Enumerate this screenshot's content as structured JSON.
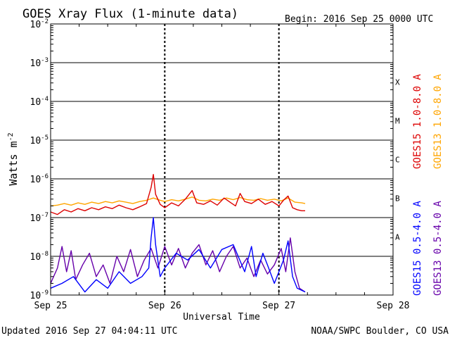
{
  "chart_data": {
    "type": "line",
    "title": "GOES Xray Flux (1-minute data)",
    "begin_label": "Begin:  2016 Sep 25 0000 UTC",
    "ylabel": "Watts m",
    "ylabel_sup": "-2",
    "xlabel": "Universal Time",
    "ylim": [
      1e-09,
      0.01
    ],
    "y_scale": "log",
    "y_ticks": [
      {
        "value": 1e-09,
        "mantissa": "10",
        "exp": "-9"
      },
      {
        "value": 1e-08,
        "mantissa": "10",
        "exp": "-8"
      },
      {
        "value": 1e-07,
        "mantissa": "10",
        "exp": "-7"
      },
      {
        "value": 1e-06,
        "mantissa": "10",
        "exp": "-6"
      },
      {
        "value": 1e-05,
        "mantissa": "10",
        "exp": "-5"
      },
      {
        "value": 0.0001,
        "mantissa": "10",
        "exp": "-4"
      },
      {
        "value": 0.001,
        "mantissa": "10",
        "exp": "-3"
      },
      {
        "value": 0.01,
        "mantissa": "10",
        "exp": "-2"
      }
    ],
    "x_ticks": [
      "Sep 25",
      "Sep 26",
      "Sep 27",
      "Sep 28"
    ],
    "x_range_days": [
      0,
      3
    ],
    "flare_classes": [
      {
        "label": "A",
        "value": 3.16e-08
      },
      {
        "label": "B",
        "value": 3.16e-07
      },
      {
        "label": "C",
        "value": 3.16e-06
      },
      {
        "label": "M",
        "value": 3.16e-05
      },
      {
        "label": "X",
        "value": 0.000316
      }
    ],
    "series": [
      {
        "name": "GOES15 1.0-8.0 A",
        "color": "#dd0000",
        "kind": "long",
        "points": [
          [
            0.0,
            1.4e-07
          ],
          [
            0.06,
            1.2e-07
          ],
          [
            0.12,
            1.6e-07
          ],
          [
            0.18,
            1.4e-07
          ],
          [
            0.24,
            1.7e-07
          ],
          [
            0.3,
            1.5e-07
          ],
          [
            0.36,
            1.8e-07
          ],
          [
            0.42,
            1.6e-07
          ],
          [
            0.48,
            1.9e-07
          ],
          [
            0.54,
            1.7e-07
          ],
          [
            0.6,
            2.1e-07
          ],
          [
            0.66,
            1.8e-07
          ],
          [
            0.72,
            1.6e-07
          ],
          [
            0.78,
            1.9e-07
          ],
          [
            0.84,
            2.3e-07
          ],
          [
            0.88,
            6e-07
          ],
          [
            0.9,
            1.3e-06
          ],
          [
            0.92,
            4e-07
          ],
          [
            0.96,
            2.2e-07
          ],
          [
            1.0,
            1.8e-07
          ],
          [
            1.06,
            2.4e-07
          ],
          [
            1.12,
            2e-07
          ],
          [
            1.18,
            3e-07
          ],
          [
            1.24,
            5e-07
          ],
          [
            1.28,
            2.4e-07
          ],
          [
            1.34,
            2.2e-07
          ],
          [
            1.4,
            2.7e-07
          ],
          [
            1.46,
            2.1e-07
          ],
          [
            1.52,
            3.2e-07
          ],
          [
            1.58,
            2.4e-07
          ],
          [
            1.62,
            2e-07
          ],
          [
            1.66,
            4.2e-07
          ],
          [
            1.7,
            2.6e-07
          ],
          [
            1.76,
            2.3e-07
          ],
          [
            1.82,
            3e-07
          ],
          [
            1.88,
            2.2e-07
          ],
          [
            1.94,
            2.6e-07
          ],
          [
            2.0,
            2e-07
          ],
          [
            2.04,
            2.8e-07
          ],
          [
            2.08,
            3.6e-07
          ],
          [
            2.12,
            1.8e-07
          ],
          [
            2.16,
            1.6e-07
          ],
          [
            2.2,
            1.5e-07
          ],
          [
            2.23,
            1.5e-07
          ]
        ]
      },
      {
        "name": "GOES13 1.0-8.0 A",
        "color": "#ffa500",
        "kind": "long",
        "points": [
          [
            0.0,
            2e-07
          ],
          [
            0.06,
            2.1e-07
          ],
          [
            0.12,
            2.3e-07
          ],
          [
            0.18,
            2.1e-07
          ],
          [
            0.24,
            2.4e-07
          ],
          [
            0.3,
            2.2e-07
          ],
          [
            0.36,
            2.5e-07
          ],
          [
            0.42,
            2.3e-07
          ],
          [
            0.48,
            2.6e-07
          ],
          [
            0.54,
            2.4e-07
          ],
          [
            0.6,
            2.7e-07
          ],
          [
            0.66,
            2.5e-07
          ],
          [
            0.72,
            2.3e-07
          ],
          [
            0.78,
            2.6e-07
          ],
          [
            0.84,
            2.8e-07
          ],
          [
            0.9,
            3.2e-07
          ],
          [
            0.96,
            2.8e-07
          ],
          [
            1.0,
            2.6e-07
          ],
          [
            1.06,
            2.9e-07
          ],
          [
            1.12,
            2.7e-07
          ],
          [
            1.18,
            3e-07
          ],
          [
            1.24,
            3.4e-07
          ],
          [
            1.3,
            2.8e-07
          ],
          [
            1.36,
            2.7e-07
          ],
          [
            1.42,
            3e-07
          ],
          [
            1.48,
            2.8e-07
          ],
          [
            1.54,
            3.2e-07
          ],
          [
            1.6,
            2.9e-07
          ],
          [
            1.66,
            3.3e-07
          ],
          [
            1.72,
            2.9e-07
          ],
          [
            1.78,
            2.8e-07
          ],
          [
            1.84,
            3.1e-07
          ],
          [
            1.9,
            2.8e-07
          ],
          [
            1.96,
            3e-07
          ],
          [
            2.02,
            2.7e-07
          ],
          [
            2.08,
            3.2e-07
          ],
          [
            2.14,
            2.5e-07
          ],
          [
            2.2,
            2.4e-07
          ],
          [
            2.23,
            2.3e-07
          ]
        ]
      },
      {
        "name": "GOES15 0.5-4.0 A",
        "color": "#0000ff",
        "kind": "short",
        "points": [
          [
            0.0,
            1.5e-09
          ],
          [
            0.1,
            2e-09
          ],
          [
            0.2,
            3e-09
          ],
          [
            0.3,
            1.2e-09
          ],
          [
            0.4,
            2.5e-09
          ],
          [
            0.5,
            1.5e-09
          ],
          [
            0.6,
            4e-09
          ],
          [
            0.7,
            2e-09
          ],
          [
            0.8,
            3e-09
          ],
          [
            0.86,
            5e-09
          ],
          [
            0.88,
            3e-08
          ],
          [
            0.9,
            1e-07
          ],
          [
            0.92,
            2e-08
          ],
          [
            0.96,
            3e-09
          ],
          [
            1.0,
            5e-09
          ],
          [
            1.1,
            1.2e-08
          ],
          [
            1.2,
            8e-09
          ],
          [
            1.3,
            1.5e-08
          ],
          [
            1.4,
            5e-09
          ],
          [
            1.5,
            1.5e-08
          ],
          [
            1.6,
            2e-08
          ],
          [
            1.7,
            4e-09
          ],
          [
            1.76,
            1.8e-08
          ],
          [
            1.8,
            3e-09
          ],
          [
            1.86,
            1.2e-08
          ],
          [
            1.9,
            6e-09
          ],
          [
            1.96,
            2e-09
          ],
          [
            2.0,
            4e-09
          ],
          [
            2.04,
            8e-09
          ],
          [
            2.08,
            2.5e-08
          ],
          [
            2.12,
            3e-09
          ],
          [
            2.16,
            1.5e-09
          ],
          [
            2.23,
            1.2e-09
          ]
        ]
      },
      {
        "name": "GOES13 0.5-4.0 A",
        "color": "#6600aa",
        "kind": "short",
        "points": [
          [
            0.0,
            2e-09
          ],
          [
            0.06,
            5e-09
          ],
          [
            0.1,
            1.8e-08
          ],
          [
            0.14,
            4e-09
          ],
          [
            0.18,
            1.4e-08
          ],
          [
            0.22,
            2.5e-09
          ],
          [
            0.28,
            6e-09
          ],
          [
            0.34,
            1.2e-08
          ],
          [
            0.4,
            3e-09
          ],
          [
            0.46,
            6e-09
          ],
          [
            0.52,
            2e-09
          ],
          [
            0.58,
            1e-08
          ],
          [
            0.64,
            4e-09
          ],
          [
            0.7,
            1.5e-08
          ],
          [
            0.76,
            3e-09
          ],
          [
            0.82,
            8e-09
          ],
          [
            0.88,
            1.6e-08
          ],
          [
            0.94,
            5e-09
          ],
          [
            1.0,
            1.8e-08
          ],
          [
            1.06,
            6e-09
          ],
          [
            1.12,
            1.6e-08
          ],
          [
            1.18,
            5e-09
          ],
          [
            1.24,
            1.2e-08
          ],
          [
            1.3,
            2e-08
          ],
          [
            1.36,
            6e-09
          ],
          [
            1.42,
            1.4e-08
          ],
          [
            1.48,
            4e-09
          ],
          [
            1.54,
            1e-08
          ],
          [
            1.6,
            1.8e-08
          ],
          [
            1.66,
            5e-09
          ],
          [
            1.72,
            9e-09
          ],
          [
            1.78,
            3e-09
          ],
          [
            1.84,
            8e-09
          ],
          [
            1.9,
            3.5e-09
          ],
          [
            1.96,
            6e-09
          ],
          [
            2.02,
            1.6e-08
          ],
          [
            2.06,
            4e-09
          ],
          [
            2.1,
            3e-08
          ],
          [
            2.14,
            4e-09
          ],
          [
            2.18,
            1.5e-09
          ],
          [
            2.23,
            1.2e-09
          ]
        ]
      }
    ]
  },
  "footer": {
    "updated": "Updated 2016 Sep 27 04:04:11 UTC",
    "credit": "NOAA/SWPC Boulder, CO USA"
  }
}
